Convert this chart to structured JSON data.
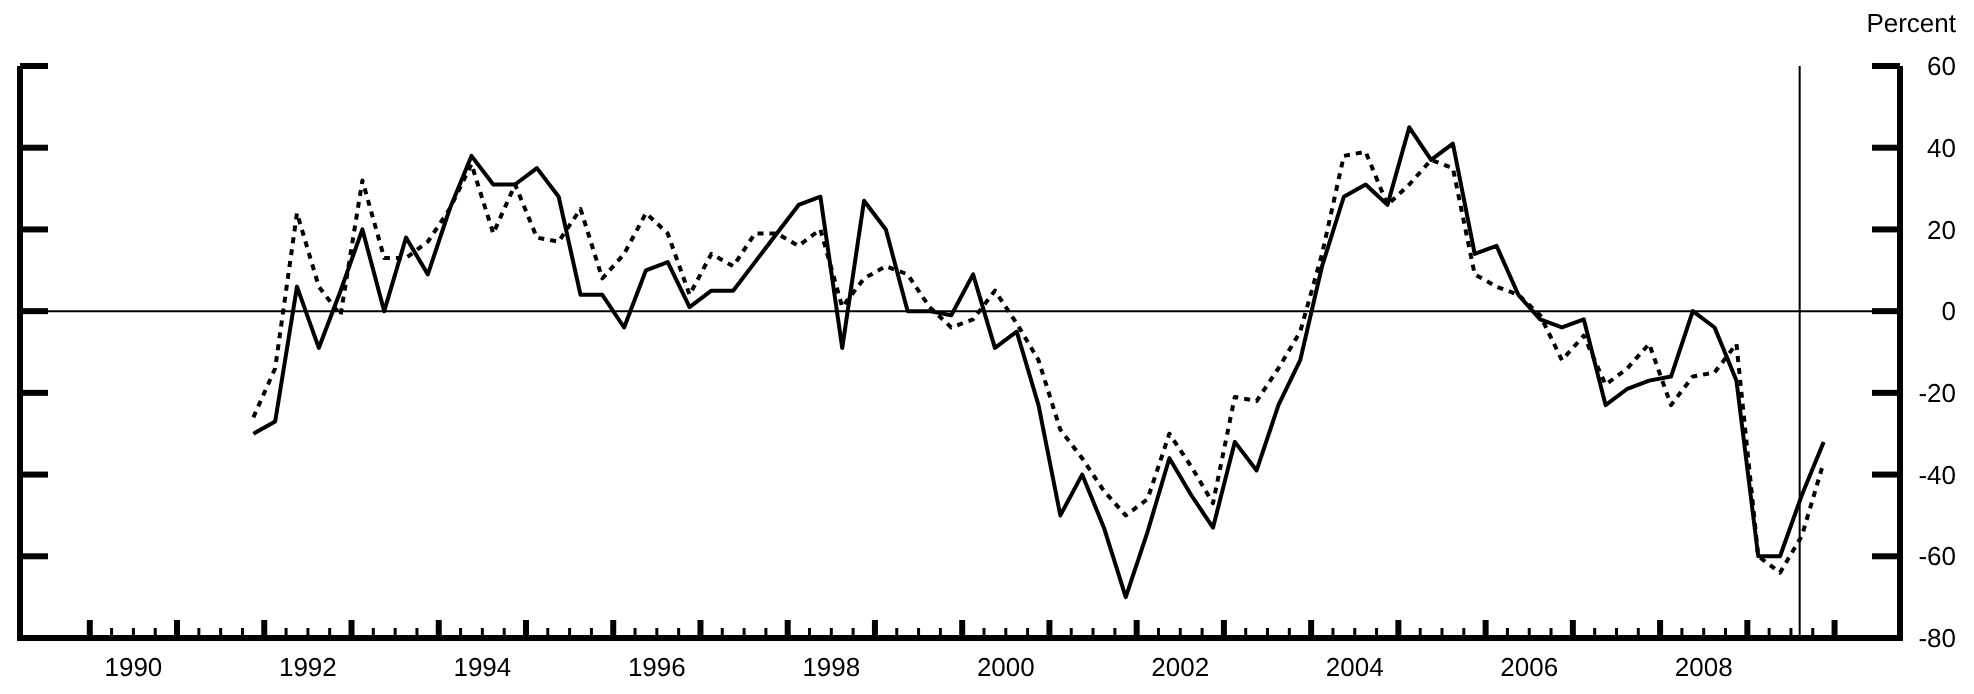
{
  "chart_data": {
    "type": "line",
    "ylabel": "Percent",
    "x": [
      1991.875,
      1992.125,
      1992.375,
      1992.625,
      1992.875,
      1993.125,
      1993.375,
      1993.625,
      1993.875,
      1994.125,
      1994.375,
      1994.625,
      1994.875,
      1995.125,
      1995.375,
      1995.625,
      1995.875,
      1996.125,
      1996.375,
      1996.625,
      1996.875,
      1997.125,
      1997.375,
      1997.625,
      1997.875,
      1998.125,
      1998.375,
      1998.625,
      1998.875,
      1999.125,
      1999.375,
      1999.625,
      1999.875,
      2000.125,
      2000.375,
      2000.625,
      2000.875,
      2001.125,
      2001.375,
      2001.625,
      2001.875,
      2002.125,
      2002.375,
      2002.625,
      2002.875,
      2003.125,
      2003.375,
      2003.625,
      2003.875,
      2004.125,
      2004.375,
      2004.625,
      2004.875,
      2005.125,
      2005.375,
      2005.625,
      2005.875,
      2006.125,
      2006.375,
      2006.625,
      2006.875,
      2007.125,
      2007.375,
      2007.625,
      2007.875,
      2008.125,
      2008.375,
      2008.625,
      2008.875,
      2009.125,
      2009.375,
      2009.625,
      2009.875
    ],
    "series": [
      {
        "color": "#000000",
        "line_style": "solid",
        "values": [
          -30,
          -27,
          6,
          -9,
          5,
          20,
          0,
          18,
          9,
          25,
          38,
          31,
          31,
          35,
          28,
          4,
          4,
          -4,
          10,
          12,
          1,
          5,
          5,
          12,
          19,
          26,
          28,
          -9,
          27,
          20,
          0,
          0,
          -1,
          9,
          -9,
          -5,
          -23,
          -50,
          -40,
          -53,
          -70,
          -54,
          -36,
          -45,
          -53,
          -32,
          -39,
          -23,
          -12,
          11,
          28,
          31,
          26,
          45,
          37,
          41,
          14,
          16,
          4,
          -2,
          -4,
          -2,
          -23,
          -19,
          -17,
          -16,
          0,
          -4,
          -17,
          -60,
          -60,
          -45,
          -32
        ]
      },
      {
        "color": "#000000",
        "line_style": "dotted",
        "values": [
          -26,
          -14,
          24,
          6,
          -1,
          32,
          13,
          13,
          17,
          25,
          36,
          19,
          31,
          18,
          17,
          25,
          8,
          14,
          24,
          19,
          4,
          14,
          11,
          19,
          19,
          16,
          20,
          1,
          8,
          11,
          9,
          1,
          -4,
          -2,
          5,
          -3,
          -12,
          -29,
          -36,
          -44,
          -50,
          -46,
          -30,
          -38,
          -47,
          -21,
          -22,
          -14,
          -5,
          14,
          38,
          39,
          26,
          31,
          37,
          35,
          9,
          6,
          4,
          -1,
          -12,
          -6,
          -18,
          -14,
          -8,
          -23,
          -16,
          -15,
          -8,
          -60,
          -64,
          -55,
          -37
        ]
      }
    ],
    "xlim": [
      1989.2,
      2010.75
    ],
    "xticks": [
      {
        "value": 1990,
        "label": null
      },
      {
        "value": 1990.25,
        "label": null
      },
      {
        "value": 1990.5,
        "label": "1990"
      },
      {
        "value": 1990.75,
        "label": null
      },
      {
        "value": 1991,
        "label": null
      },
      {
        "value": 1991.25,
        "label": null
      },
      {
        "value": 1991.5,
        "label": null
      },
      {
        "value": 1991.75,
        "label": null
      },
      {
        "value": 1992,
        "label": null
      },
      {
        "value": 1992.25,
        "label": null
      },
      {
        "value": 1992.5,
        "label": "1992"
      },
      {
        "value": 1992.75,
        "label": null
      },
      {
        "value": 1993,
        "label": null
      },
      {
        "value": 1993.25,
        "label": null
      },
      {
        "value": 1993.5,
        "label": null
      },
      {
        "value": 1993.75,
        "label": null
      },
      {
        "value": 1994,
        "label": null
      },
      {
        "value": 1994.25,
        "label": null
      },
      {
        "value": 1994.5,
        "label": "1994"
      },
      {
        "value": 1994.75,
        "label": null
      },
      {
        "value": 1995,
        "label": null
      },
      {
        "value": 1995.25,
        "label": null
      },
      {
        "value": 1995.5,
        "label": null
      },
      {
        "value": 1995.75,
        "label": null
      },
      {
        "value": 1996,
        "label": null
      },
      {
        "value": 1996.25,
        "label": null
      },
      {
        "value": 1996.5,
        "label": "1996"
      },
      {
        "value": 1996.75,
        "label": null
      },
      {
        "value": 1997,
        "label": null
      },
      {
        "value": 1997.25,
        "label": null
      },
      {
        "value": 1997.5,
        "label": null
      },
      {
        "value": 1997.75,
        "label": null
      },
      {
        "value": 1998,
        "label": null
      },
      {
        "value": 1998.25,
        "label": null
      },
      {
        "value": 1998.5,
        "label": "1998"
      },
      {
        "value": 1998.75,
        "label": null
      },
      {
        "value": 1999,
        "label": null
      },
      {
        "value": 1999.25,
        "label": null
      },
      {
        "value": 1999.5,
        "label": null
      },
      {
        "value": 1999.75,
        "label": null
      },
      {
        "value": 2000,
        "label": null
      },
      {
        "value": 2000.25,
        "label": null
      },
      {
        "value": 2000.5,
        "label": "2000"
      },
      {
        "value": 2000.75,
        "label": null
      },
      {
        "value": 2001,
        "label": null
      },
      {
        "value": 2001.25,
        "label": null
      },
      {
        "value": 2001.5,
        "label": null
      },
      {
        "value": 2001.75,
        "label": null
      },
      {
        "value": 2002,
        "label": null
      },
      {
        "value": 2002.25,
        "label": null
      },
      {
        "value": 2002.5,
        "label": "2002"
      },
      {
        "value": 2002.75,
        "label": null
      },
      {
        "value": 2003,
        "label": null
      },
      {
        "value": 2003.25,
        "label": null
      },
      {
        "value": 2003.5,
        "label": null
      },
      {
        "value": 2003.75,
        "label": null
      },
      {
        "value": 2004,
        "label": null
      },
      {
        "value": 2004.25,
        "label": null
      },
      {
        "value": 2004.5,
        "label": "2004"
      },
      {
        "value": 2004.75,
        "label": null
      },
      {
        "value": 2005,
        "label": null
      },
      {
        "value": 2005.25,
        "label": null
      },
      {
        "value": 2005.5,
        "label": null
      },
      {
        "value": 2005.75,
        "label": null
      },
      {
        "value": 2006,
        "label": null
      },
      {
        "value": 2006.25,
        "label": null
      },
      {
        "value": 2006.5,
        "label": "2006"
      },
      {
        "value": 2006.75,
        "label": null
      },
      {
        "value": 2007,
        "label": null
      },
      {
        "value": 2007.25,
        "label": null
      },
      {
        "value": 2007.5,
        "label": null
      },
      {
        "value": 2007.75,
        "label": null
      },
      {
        "value": 2008,
        "label": null
      },
      {
        "value": 2008.25,
        "label": null
      },
      {
        "value": 2008.5,
        "label": "2008"
      },
      {
        "value": 2008.75,
        "label": null
      },
      {
        "value": 2009,
        "label": null
      },
      {
        "value": 2009.25,
        "label": null
      },
      {
        "value": 2009.5,
        "label": null
      },
      {
        "value": 2009.75,
        "label": null
      },
      {
        "value": 2010,
        "label": null
      }
    ],
    "ylim": [
      -80,
      60
    ],
    "yticks": [
      -80,
      -60,
      -40,
      -20,
      0,
      20,
      40,
      60
    ],
    "ref_lines": [
      {
        "axis": "y",
        "value": 0,
        "color": "#000000"
      },
      {
        "axis": "x",
        "value": 2009.6,
        "color": "#000000"
      }
    ],
    "grid": false
  }
}
